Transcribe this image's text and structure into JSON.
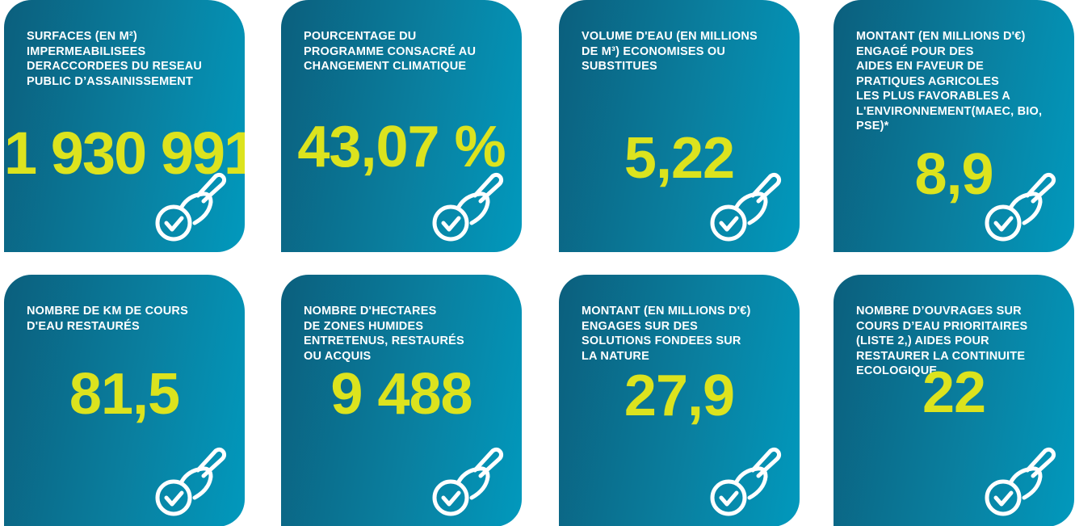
{
  "tiles": [
    {
      "label": [
        "SURFACES (EN M²)",
        "IMPERMEABILISEES",
        "DERACCORDEES DU RESEAU",
        "PUBLIC D’ASSAINISSEMENT"
      ],
      "value": "1 930 991"
    },
    {
      "label": [
        "POURCENTAGE DU",
        "PROGRAMME CONSACRÉ AU",
        "CHANGEMENT CLIMATIQUE"
      ],
      "value": "43,07 %"
    },
    {
      "label": [
        "VOLUME D'EAU (EN MILLIONS",
        "DE M³) ECONOMISES OU",
        "SUBSTITUES"
      ],
      "value": "5,22"
    },
    {
      "label": [
        "MONTANT (EN MILLIONS D'€)",
        "ENGAGÉ POUR DES",
        "AIDES EN FAVEUR DE",
        "PRATIQUES AGRICOLES",
        "LES PLUS FAVORABLES A",
        "L'ENVIRONNEMENT(MAEC, BIO,",
        "PSE)*"
      ],
      "value": "8,9"
    },
    {
      "label": [
        "NOMBRE DE KM DE COURS",
        "D'EAU RESTAURÉS"
      ],
      "value": "81,5"
    },
    {
      "label": [
        "NOMBRE D'HECTARES",
        "DE ZONES HUMIDES",
        "ENTRETENUS, RESTAURÉS",
        "OU ACQUIS"
      ],
      "value": "9 488"
    },
    {
      "label": [
        "MONTANT (EN MILLIONS D'€)",
        "ENGAGES SUR DES",
        "SOLUTIONS FONDEES SUR",
        "LA NATURE"
      ],
      "value": "27,9"
    },
    {
      "label": [
        "NOMBRE D’OUVRAGES SUR",
        "COURS D’EAU  PRIORITAIRES",
        "(LISTE 2,) AIDES POUR",
        "RESTAURER LA CONTINUITE",
        "ECOLOGIQUE"
      ],
      "value": "22"
    }
  ]
}
